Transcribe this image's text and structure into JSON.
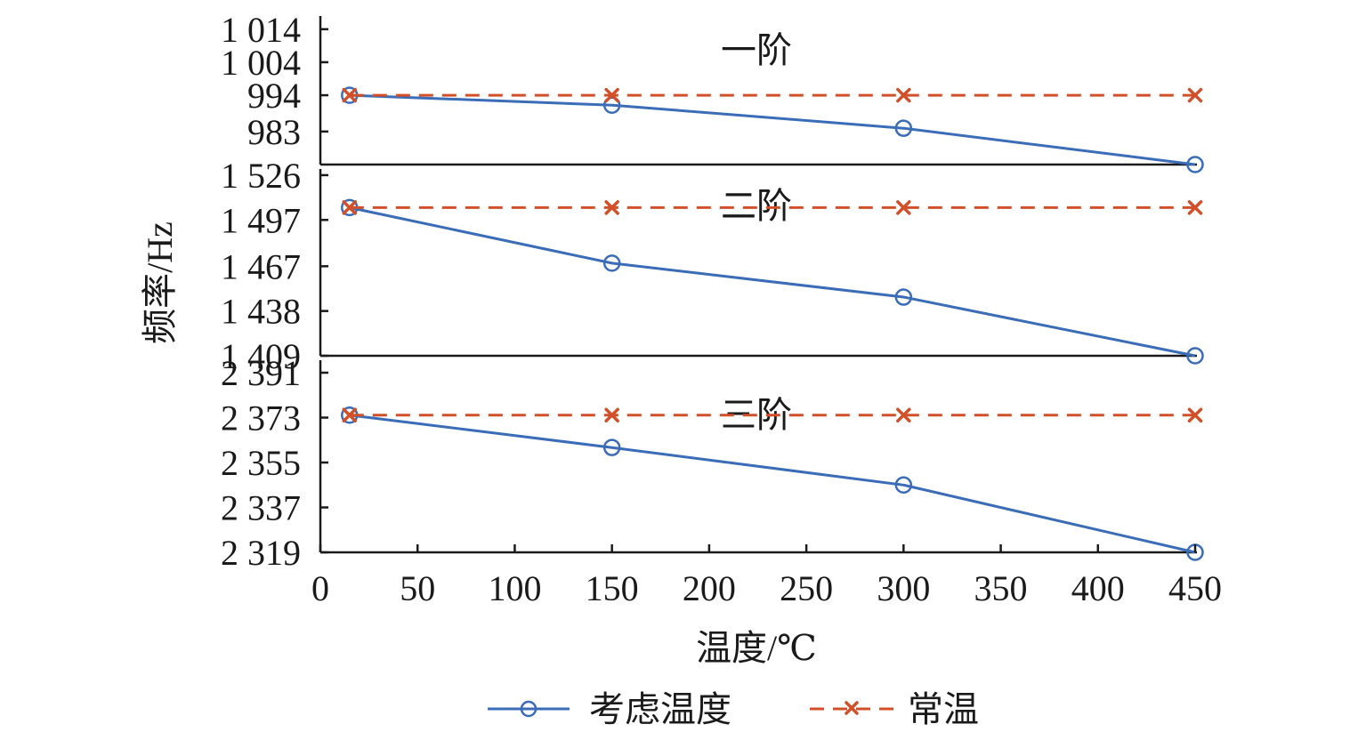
{
  "chart_data": {
    "type": "line",
    "xlabel": "温度/℃",
    "ylabel": "频率/Hz",
    "xlim": [
      0,
      450
    ],
    "x_ticks": [
      "0",
      "50",
      "100",
      "150",
      "200",
      "250",
      "300",
      "350",
      "400",
      "450"
    ],
    "x_tick_values": [
      0,
      50,
      100,
      150,
      200,
      250,
      300,
      350,
      400,
      450
    ],
    "x": [
      15,
      150,
      300,
      450
    ],
    "legend": {
      "position": "bottom-center",
      "entries": [
        "考虑温度",
        "常温"
      ]
    },
    "series_colors": {
      "考虑温度": "#3a6cb8",
      "常温": "#d1502a"
    },
    "panels": [
      {
        "title": "一阶",
        "ylim": [
          973,
          1018
        ],
        "y_ticks": [
          "1 014",
          "1 004",
          "994",
          "983"
        ],
        "y_tick_values": [
          1014,
          1004,
          994,
          983
        ],
        "series": [
          {
            "name": "考虑温度",
            "values": [
              994,
              991,
              984,
              973
            ]
          },
          {
            "name": "常温",
            "values": [
              994,
              994,
              994,
              994
            ]
          }
        ]
      },
      {
        "title": "二阶",
        "ylim": [
          1409,
          1530
        ],
        "y_ticks": [
          "1 526",
          "1 497",
          "1 467",
          "1 438",
          "1 409"
        ],
        "y_tick_values": [
          1526,
          1497,
          1467,
          1438,
          1409
        ],
        "series": [
          {
            "name": "考虑温度",
            "values": [
              1505,
              1469,
              1447,
              1409
            ]
          },
          {
            "name": "常温",
            "values": [
              1505,
              1505,
              1505,
              1505
            ]
          }
        ]
      },
      {
        "title": "三阶",
        "ylim": [
          2319,
          2396
        ],
        "y_ticks": [
          "2 391",
          "2 373",
          "2 355",
          "2 337",
          "2 319"
        ],
        "y_tick_values": [
          2391,
          2373,
          2355,
          2337,
          2319
        ],
        "series": [
          {
            "name": "考虑温度",
            "values": [
              2374,
              2361,
              2346,
              2319
            ]
          },
          {
            "name": "常温",
            "values": [
              2374,
              2374,
              2374,
              2374
            ]
          }
        ]
      }
    ]
  }
}
